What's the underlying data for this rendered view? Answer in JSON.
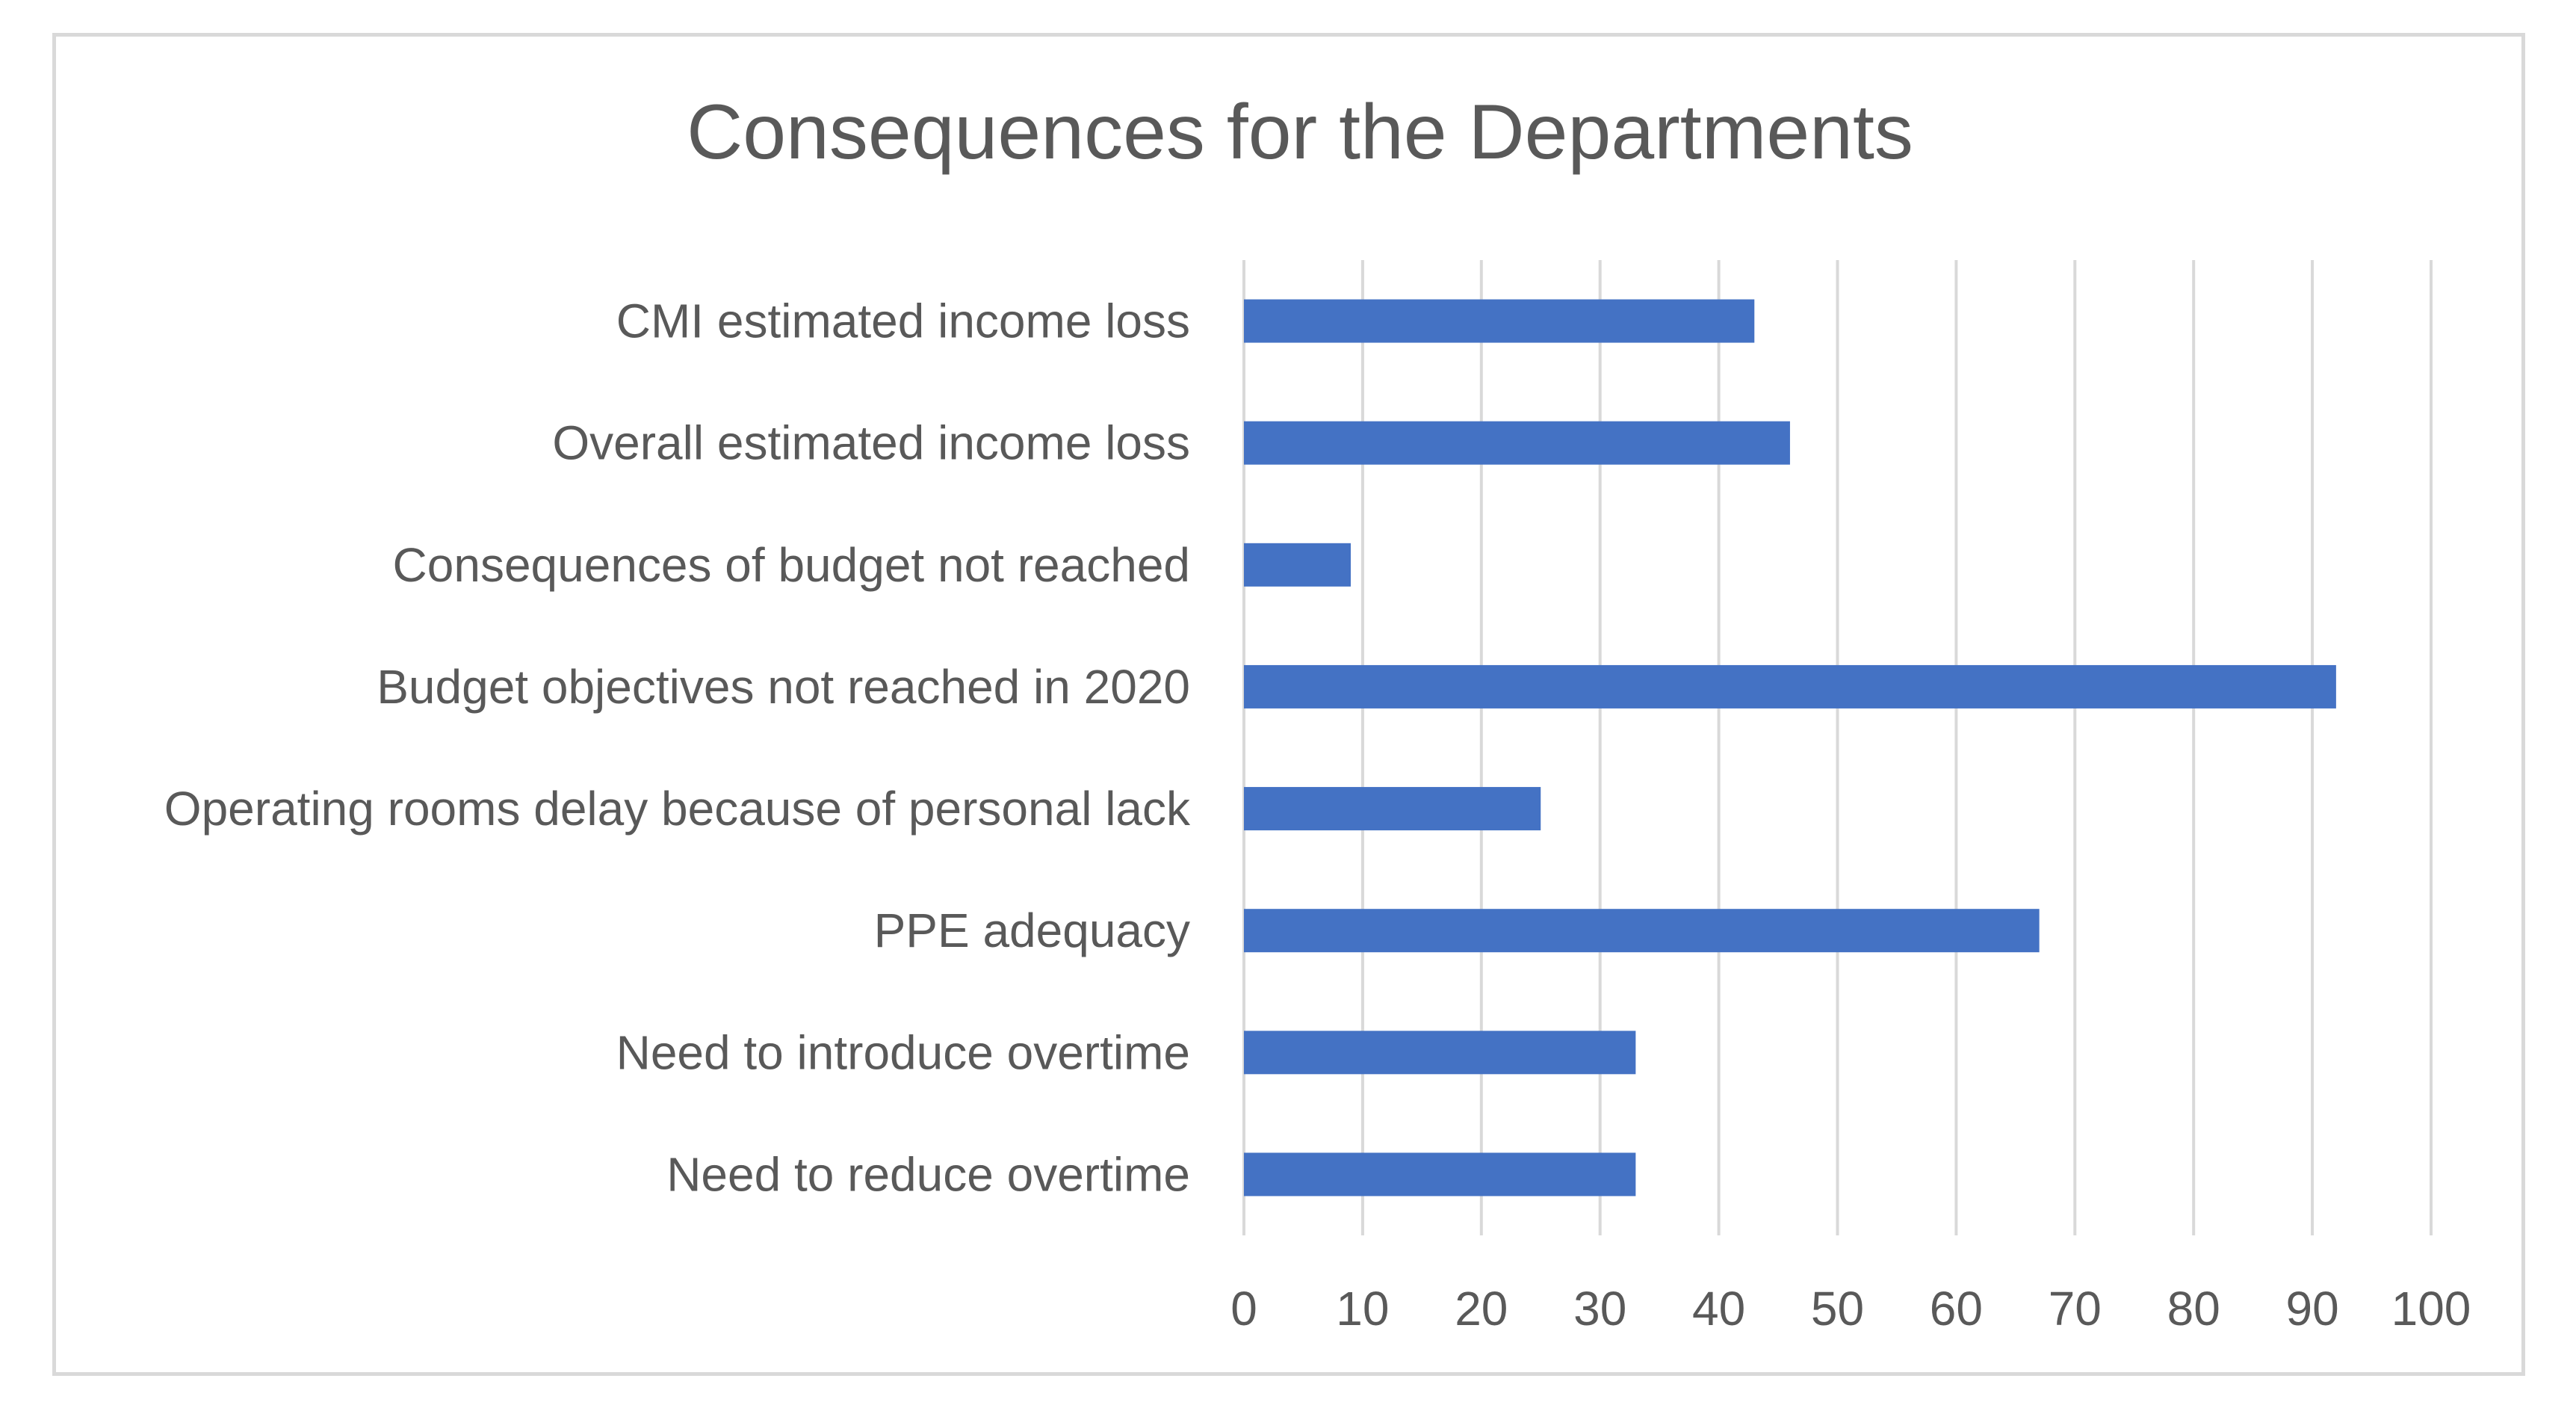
{
  "chart_data": {
    "type": "bar",
    "orientation": "horizontal",
    "title": "Consequences for the Departments",
    "xlabel": "",
    "ylabel": "",
    "categories": [
      "CMI estimated income loss",
      "Overall estimated income loss",
      "Consequences of budget not reached",
      "Budget objectives not reached in 2020",
      "Operating rooms delay because of personal lack",
      "PPE adequacy",
      "Need to introduce overtime",
      "Need to reduce overtime"
    ],
    "values": [
      43,
      46,
      9,
      92,
      25,
      67,
      33,
      33
    ],
    "xlim": [
      0,
      100
    ],
    "xticks": [
      "0",
      "10",
      "20",
      "30",
      "40",
      "50",
      "60",
      "70",
      "80",
      "90",
      "100"
    ],
    "grid": true,
    "legend": "none",
    "colors": {
      "bar": "#4472c4",
      "grid": "#d9d9d9",
      "text": "#595959",
      "border": "#d9d9d9"
    }
  }
}
